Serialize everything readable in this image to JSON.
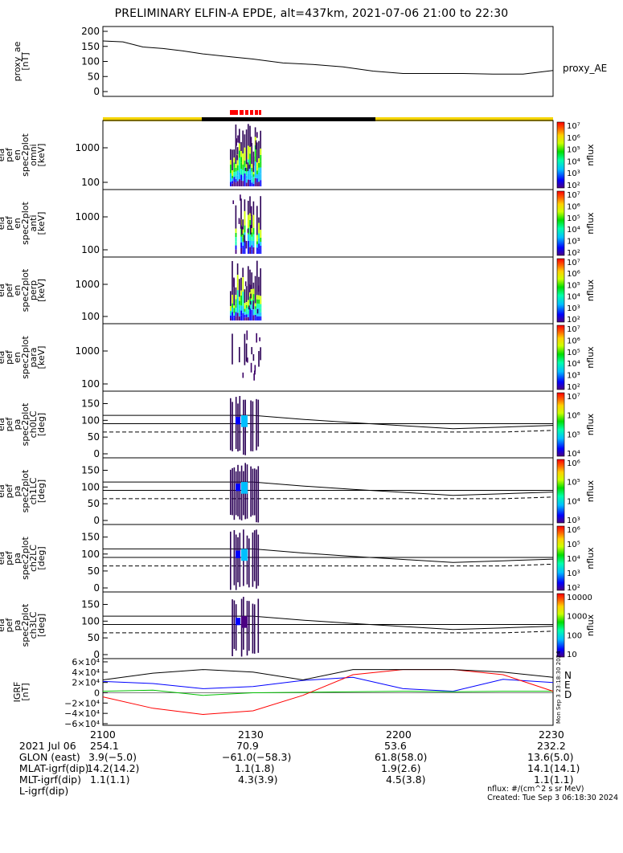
{
  "title": "PRELIMINARY ELFIN-A EPDE, alt=437km, 2021-07-06 21:00 to 22:30",
  "colors": {
    "sunlit": "#f5d400",
    "eclipse": "#000000",
    "science_marker": "#ff0000",
    "B_N": "#0000ff",
    "B_E": "#00c000",
    "B_D": "#ff0000",
    "B_total": "#000000"
  },
  "panels": [
    {
      "id": "proxy_ae",
      "ylabel": [
        "proxy_ae",
        "[nT]"
      ],
      "right_label": "proxy_AE",
      "ticks": [
        "200",
        "150",
        "100",
        "50",
        "0"
      ]
    },
    {
      "id": "omni",
      "ylabel": [
        "ela",
        "pef",
        "en",
        "spec2plot",
        "omni",
        "[keV]"
      ],
      "ticks": [
        "1000",
        "100"
      ],
      "cb_label": "nflux",
      "cb_ticks": [
        "10⁷",
        "10⁶",
        "10⁵",
        "10⁴",
        "10³",
        "10²"
      ]
    },
    {
      "id": "anti",
      "ylabel": [
        "ela",
        "pef",
        "en",
        "spec2plot",
        "anti",
        "[keV]"
      ],
      "ticks": [
        "1000",
        "100"
      ],
      "cb_label": "nflux",
      "cb_ticks": [
        "10⁷",
        "10⁶",
        "10⁵",
        "10⁴",
        "10³",
        "10²"
      ]
    },
    {
      "id": "perp",
      "ylabel": [
        "ela",
        "pef",
        "en",
        "spec2plot",
        "perp",
        "[keV]"
      ],
      "ticks": [
        "1000",
        "100"
      ],
      "cb_label": "nflux",
      "cb_ticks": [
        "10⁷",
        "10⁶",
        "10⁵",
        "10⁴",
        "10³",
        "10²"
      ]
    },
    {
      "id": "para",
      "ylabel": [
        "ela",
        "pef",
        "en",
        "spec2plot",
        "para",
        "[keV]"
      ],
      "ticks": [
        "1000",
        "100"
      ],
      "cb_label": "nflux",
      "cb_ticks": [
        "10⁷",
        "10⁶",
        "10⁵",
        "10⁴",
        "10³",
        "10²"
      ]
    },
    {
      "id": "ch0LC",
      "ylabel": [
        "ela",
        "pef",
        "pa",
        "spec2plot",
        "ch0LC",
        "[deg]"
      ],
      "ticks": [
        "150",
        "100",
        "50",
        "0"
      ],
      "cb_label": "nflux",
      "cb_ticks": [
        "10⁷",
        "10⁶",
        "10⁵",
        "10⁴"
      ]
    },
    {
      "id": "ch1LC",
      "ylabel": [
        "ela",
        "pef",
        "pa",
        "spec2plot",
        "ch1LC",
        "[deg]"
      ],
      "ticks": [
        "150",
        "100",
        "50",
        "0"
      ],
      "cb_label": "nflux",
      "cb_ticks": [
        "10⁶",
        "10⁵",
        "10⁴",
        "10³"
      ]
    },
    {
      "id": "ch2LC",
      "ylabel": [
        "ela",
        "pef",
        "pa",
        "spec2plot",
        "ch2LC",
        "[deg]"
      ],
      "ticks": [
        "150",
        "100",
        "50",
        "0"
      ],
      "cb_label": "nflux",
      "cb_ticks": [
        "10⁶",
        "10⁵",
        "10⁴",
        "10³",
        "10²"
      ]
    },
    {
      "id": "ch3LC",
      "ylabel": [
        "ela",
        "pef",
        "pa",
        "spec2plot",
        "ch3LC",
        "[deg]"
      ],
      "ticks": [
        "150",
        "100",
        "50",
        "0"
      ],
      "cb_label": "nflux",
      "cb_ticks": [
        "10000",
        "1000",
        "100",
        "10"
      ]
    },
    {
      "id": "igrf",
      "ylabel": [
        "IGRF",
        "[nT]"
      ],
      "ticks": [
        "6×10⁴",
        "4×10⁴",
        "2×10⁴",
        "0",
        "−2×10⁴",
        "−4×10⁴",
        "−6×10⁴"
      ],
      "legend": [
        "N",
        "E",
        "D"
      ],
      "stamp": "Mon Sep  3 23:18:30 2024"
    }
  ],
  "footer": {
    "rows": [
      {
        "label": "2021 Jul 06",
        "values": [
          "2100",
          "2130",
          "2200",
          "2230"
        ]
      },
      {
        "label": "GLON (east)",
        "values": [
          "254.1",
          "70.9",
          "53.6",
          "232.2"
        ]
      },
      {
        "label": "MLAT-igrf(dip)",
        "values": [
          "3.9(−5.0)",
          "−61.0(−58.3)",
          "61.8(58.0)",
          "13.6(5.0)"
        ]
      },
      {
        "label": "MLT-igrf(dip)",
        "values": [
          "14.2(14.2)",
          "1.1(1.8)",
          "1.9(2.6)",
          "14.1(14.1)"
        ]
      },
      {
        "label": "L-igrf(dip)",
        "values": [
          "1.1(1.1)",
          "4.3(3.9)",
          "4.5(3.8)",
          "1.1(1.1)"
        ]
      }
    ],
    "units": "nflux: #/(cm^2 s sr MeV)",
    "created": "Created: Tue Sep  3 06:18:30 2024"
  },
  "chart_data": {
    "type": "line",
    "title": "PRELIMINARY ELFIN-A EPDE, alt=437km, 2021-07-06 21:00 to 22:30",
    "x_unit": "UT (hhmm)",
    "x_ticks": [
      "2100",
      "2130",
      "2200",
      "2230"
    ],
    "xlim": [
      0,
      90
    ],
    "proxy_ae": {
      "ylim": [
        0,
        200
      ],
      "x": [
        0,
        4,
        8,
        12,
        16,
        20,
        24,
        30,
        36,
        42,
        48,
        54,
        60,
        66,
        72,
        78,
        84,
        90
      ],
      "y": [
        168,
        165,
        148,
        143,
        135,
        125,
        118,
        108,
        95,
        90,
        82,
        68,
        60,
        60,
        60,
        58,
        58,
        70
      ]
    },
    "igrf": {
      "ylim": [
        -60000,
        60000
      ],
      "series": [
        {
          "name": "N",
          "x": [
            0,
            10,
            20,
            30,
            40,
            50,
            60,
            70,
            80,
            90
          ],
          "y": [
            22000,
            18000,
            8000,
            12000,
            24000,
            30000,
            8000,
            3000,
            26000,
            20000
          ]
        },
        {
          "name": "E",
          "x": [
            0,
            10,
            20,
            30,
            40,
            50,
            60,
            70,
            80,
            90
          ],
          "y": [
            3000,
            5000,
            -5000,
            0,
            1000,
            2000,
            3000,
            2000,
            3000,
            3000
          ]
        },
        {
          "name": "D",
          "x": [
            0,
            10,
            20,
            30,
            40,
            50,
            60,
            70,
            80,
            90
          ],
          "y": [
            -8000,
            -30000,
            -42000,
            -35000,
            -5000,
            35000,
            45000,
            45000,
            35000,
            3000
          ]
        },
        {
          "x": [
            0,
            10,
            20,
            30,
            40,
            50,
            60,
            70,
            80,
            90
          ],
          "y": [
            25000,
            38000,
            45000,
            40000,
            25000,
            45000,
            45000,
            45000,
            40000,
            30000
          ]
        }
      ]
    },
    "pitch_angle_lines": {
      "ylim": [
        0,
        180
      ],
      "x": [
        0,
        20,
        30,
        40,
        50,
        60,
        70,
        80,
        90
      ],
      "loss_cone": [
        115,
        115,
        115,
        103,
        93,
        84,
        75,
        80,
        85
      ],
      "anti_loss_cone": [
        65,
        65,
        65,
        65,
        65,
        65,
        65,
        65,
        70
      ],
      "reference": [
        90,
        90,
        90,
        90,
        90,
        90,
        90,
        90,
        90
      ]
    }
  }
}
